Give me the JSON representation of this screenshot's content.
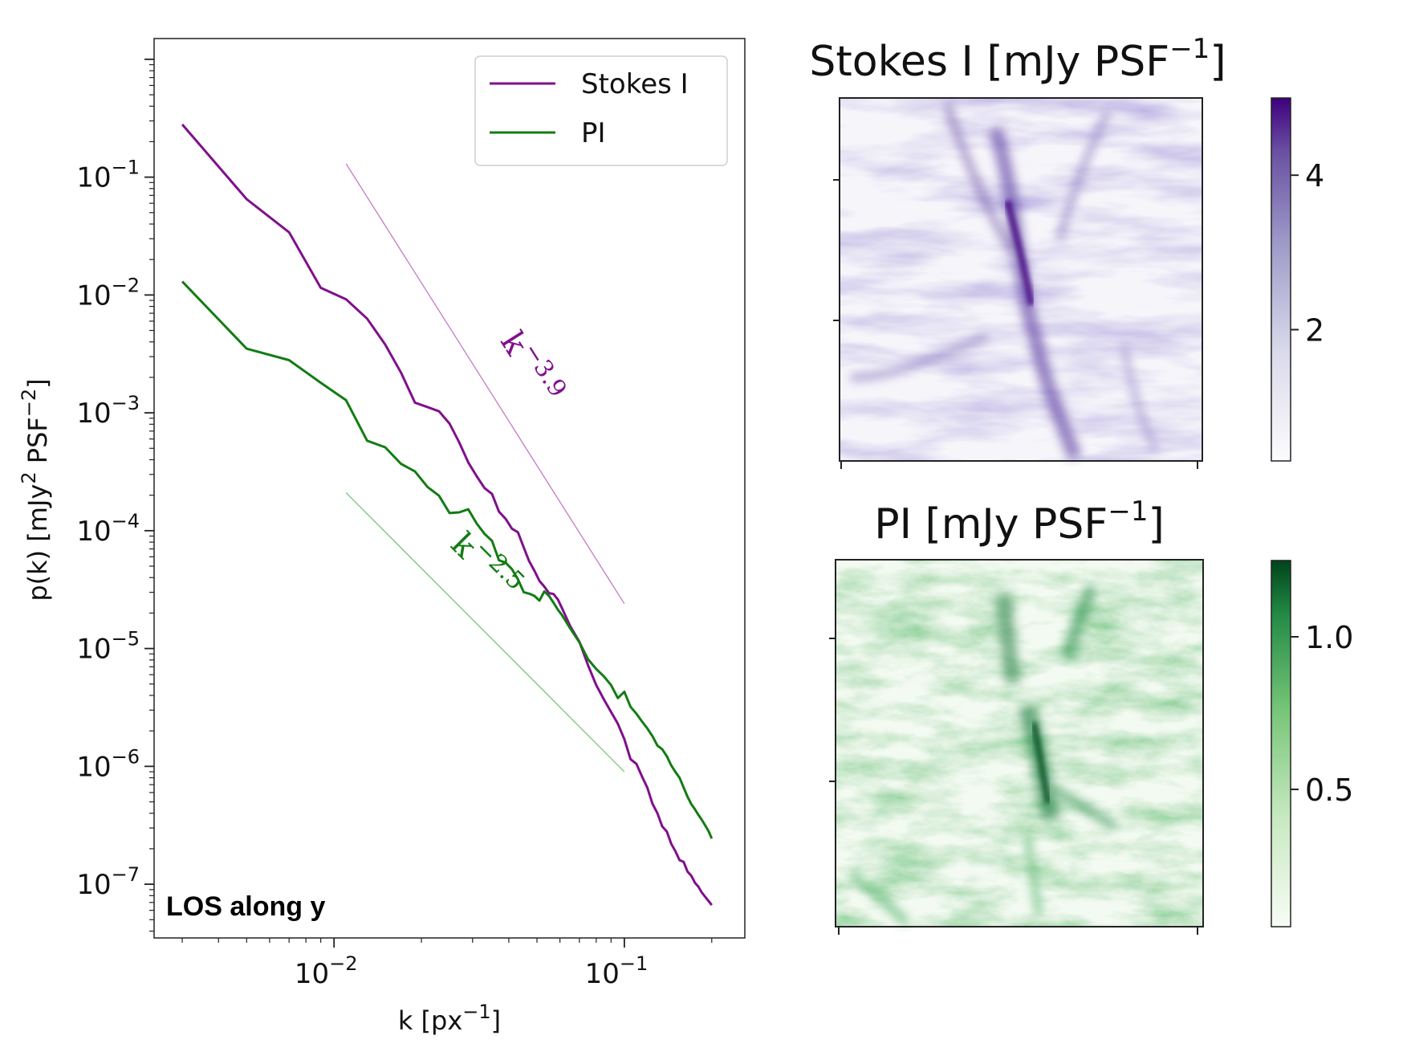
{
  "chart_data": [
    {
      "type": "line",
      "panel": "power-spectrum",
      "title": "",
      "xlabel": "k [px",
      "xlabel_sup": "−1",
      "xlabel_tail": "]",
      "ylabel": "p(k) [mJy",
      "ylabel_sup1": "2",
      "ylabel_mid": " PSF",
      "ylabel_sup2": "−2",
      "ylabel_tail": "]",
      "xscale": "log",
      "yscale": "log",
      "xlim": [
        0.0024,
        0.26
      ],
      "ylim": [
        3.5e-08,
        1.5
      ],
      "xticks": [
        {
          "value": 0.01,
          "base": "10",
          "exp": "−2"
        },
        {
          "value": 0.1,
          "base": "10",
          "exp": "−1"
        }
      ],
      "yticks": [
        {
          "value": 0.1,
          "base": "10",
          "exp": "−1"
        },
        {
          "value": 0.01,
          "base": "10",
          "exp": "−2"
        },
        {
          "value": 0.001,
          "base": "10",
          "exp": "−3"
        },
        {
          "value": 0.0001,
          "base": "10",
          "exp": "−4"
        },
        {
          "value": 1e-05,
          "base": "10",
          "exp": "−5"
        },
        {
          "value": 1e-06,
          "base": "10",
          "exp": "−6"
        },
        {
          "value": 1e-07,
          "base": "10",
          "exp": "−7"
        }
      ],
      "series": [
        {
          "name": "Stokes I",
          "color": "#800f8c",
          "x": [
            0.003,
            0.005,
            0.007,
            0.009,
            0.011,
            0.013,
            0.015,
            0.017,
            0.019,
            0.021,
            0.023,
            0.025,
            0.027,
            0.029,
            0.031,
            0.033,
            0.035,
            0.037,
            0.039,
            0.041,
            0.043,
            0.045,
            0.047,
            0.049,
            0.051,
            0.053,
            0.055,
            0.057,
            0.059,
            0.061,
            0.065,
            0.07,
            0.075,
            0.08,
            0.085,
            0.09,
            0.095,
            0.1,
            0.105,
            0.11,
            0.115,
            0.12,
            0.125,
            0.13,
            0.135,
            0.14,
            0.145,
            0.15,
            0.155,
            0.16,
            0.165,
            0.17,
            0.175,
            0.18,
            0.185,
            0.19,
            0.195,
            0.2
          ],
          "values": [
            0.28,
            0.065,
            0.034,
            0.0115,
            0.0092,
            0.0063,
            0.0038,
            0.0022,
            0.00122,
            0.00112,
            0.00103,
            0.00081,
            0.00056,
            0.00038,
            0.00029,
            0.00023,
            0.000205,
            0.000145,
            0.000126,
            0.000104,
            9.7e-05,
            7.22e-05,
            5.5e-05,
            4.58e-05,
            3.75e-05,
            3.35e-05,
            2.95e-05,
            2.9e-05,
            2.61e-05,
            2.2e-05,
            1.56e-05,
            1.14e-05,
            7.2e-06,
            4.9e-06,
            3.7e-06,
            2.9e-06,
            2.3e-06,
            1.7e-06,
            1.15e-06,
            1.05e-06,
            8.2e-07,
            6.6e-07,
            4.8e-07,
            4e-07,
            3.1e-07,
            2.8e-07,
            2.2e-07,
            1.9e-07,
            1.6e-07,
            1.55e-07,
            1.28e-07,
            1.18e-07,
            1.03e-07,
            9.52e-08,
            8.48e-08,
            7.8e-08,
            7.2e-08,
            6.65e-08
          ]
        },
        {
          "name": "PI",
          "color": "#137c13",
          "x": [
            0.003,
            0.005,
            0.007,
            0.009,
            0.011,
            0.013,
            0.015,
            0.017,
            0.019,
            0.021,
            0.023,
            0.025,
            0.027,
            0.029,
            0.031,
            0.033,
            0.035,
            0.037,
            0.039,
            0.041,
            0.043,
            0.045,
            0.047,
            0.049,
            0.051,
            0.053,
            0.055,
            0.057,
            0.059,
            0.061,
            0.065,
            0.07,
            0.075,
            0.08,
            0.085,
            0.09,
            0.095,
            0.1,
            0.105,
            0.11,
            0.115,
            0.12,
            0.125,
            0.13,
            0.135,
            0.14,
            0.145,
            0.15,
            0.155,
            0.16,
            0.165,
            0.17,
            0.175,
            0.18,
            0.185,
            0.19,
            0.195,
            0.2
          ],
          "values": [
            0.013,
            0.0035,
            0.0028,
            0.0018,
            0.00128,
            0.00058,
            0.00051,
            0.00037,
            0.000318,
            0.000235,
            0.000198,
            0.000141,
            0.000143,
            0.000152,
            0.000115,
            9.4e-05,
            8.2e-05,
            5.61e-05,
            5.35e-05,
            4.72e-05,
            3.87e-05,
            3.01e-05,
            2.92e-05,
            2.8e-05,
            2.55e-05,
            3.05e-05,
            2.8e-05,
            2.45e-05,
            2.14e-05,
            1.92e-05,
            1.49e-05,
            1.13e-05,
            8.1e-06,
            6.7e-06,
            5.8e-06,
            4.9e-06,
            3.8e-06,
            4.3e-06,
            3.2e-06,
            2.8e-06,
            2.4e-06,
            2.1e-06,
            1.8e-06,
            1.5e-06,
            1.4e-06,
            1.22e-06,
            1.02e-06,
            8.95e-07,
            8e-07,
            6.62e-07,
            5.53e-07,
            4.78e-07,
            4.32e-07,
            3.87e-07,
            3.51e-07,
            3.15e-07,
            2.82e-07,
            2.44e-07
          ]
        }
      ],
      "reference_lines": [
        {
          "label": "k",
          "exponent": "−3.9",
          "slope": -3.9,
          "x": [
            0.011,
            0.1
          ],
          "y": [
            0.13,
            2.4e-05
          ],
          "color": "#c47ac9",
          "label_color": "#800f8c"
        },
        {
          "label": "k",
          "exponent": "−2.5",
          "slope": -2.5,
          "x": [
            0.011,
            0.1
          ],
          "y": [
            0.00021,
            9e-07
          ],
          "color": "#7cc27c",
          "label_color": "#137c13"
        }
      ],
      "legend": {
        "position": "top-right",
        "entries": [
          "Stokes I",
          "PI"
        ]
      },
      "annotation": "LOS along y"
    },
    {
      "type": "heatmap",
      "panel": "stokes-i-map",
      "title": "Stokes I [mJy PSF",
      "title_sup": "−1",
      "title_tail": "]",
      "colormap": "Purples",
      "colorbar": {
        "ticks": [
          {
            "value": 2,
            "label": "2"
          },
          {
            "value": 4,
            "label": "4"
          }
        ],
        "range": [
          0.3,
          5.0
        ],
        "low_color": "#fcfbfd",
        "high_color": "#3f007d"
      }
    },
    {
      "type": "heatmap",
      "panel": "pi-map",
      "title": "PI [mJy PSF",
      "title_sup": "−1",
      "title_tail": "]",
      "colormap": "Greens",
      "colorbar": {
        "ticks": [
          {
            "value": 0.5,
            "label": "0.5"
          },
          {
            "value": 1.0,
            "label": "1.0"
          }
        ],
        "range": [
          0.05,
          1.25
        ],
        "low_color": "#f7fcf5",
        "high_color": "#00441b"
      }
    }
  ]
}
